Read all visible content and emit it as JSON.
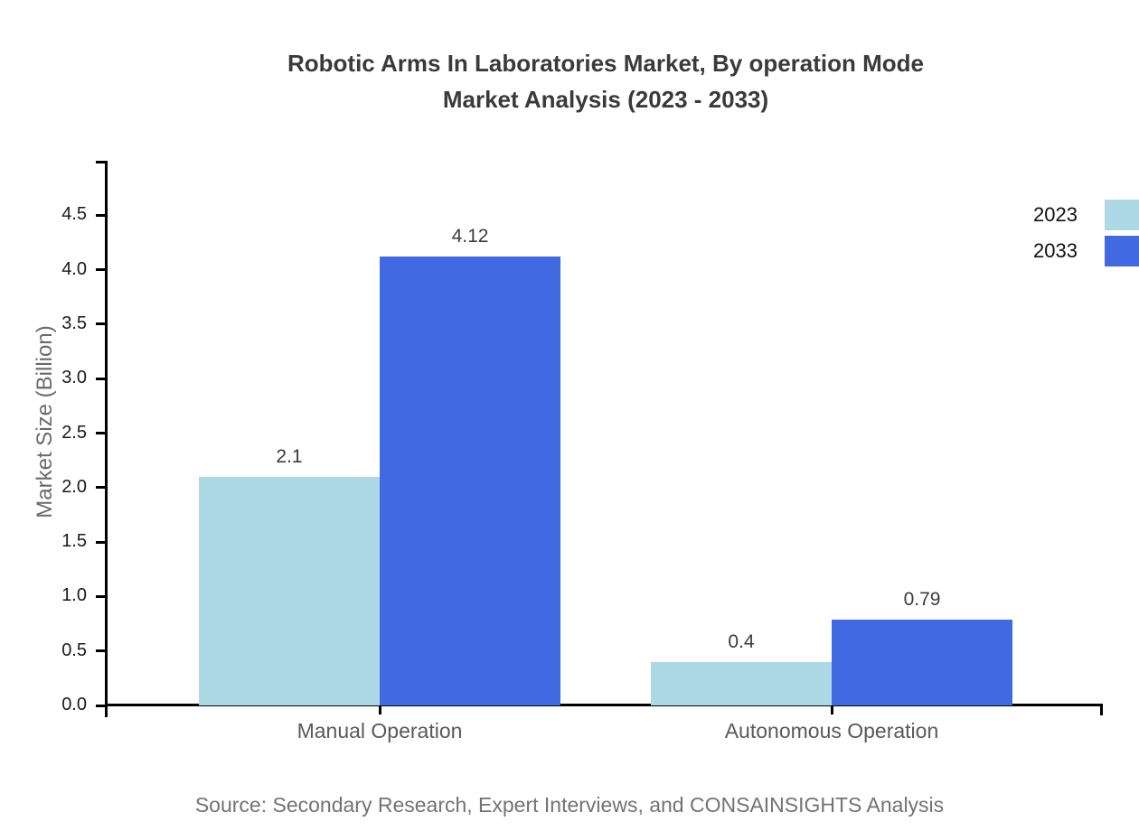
{
  "title": {
    "line1": "Robotic Arms In Laboratories Market, By operation Mode",
    "line2": "Market Analysis (2023 - 2033)"
  },
  "source_note": "Source: Secondary Research, Expert Interviews, and CONSAINSIGHTS Analysis",
  "chart_data": {
    "type": "bar",
    "title": "Robotic Arms In Laboratories Market, By operation Mode Market Analysis (2023 - 2033)",
    "categories": [
      "Manual Operation",
      "Autonomous Operation"
    ],
    "series": [
      {
        "name": "2023",
        "color": "#ADD8E6",
        "values": [
          2.1,
          0.4
        ],
        "value_labels": [
          "2.1",
          "0.4"
        ]
      },
      {
        "name": "2033",
        "color": "#4169E1",
        "values": [
          4.12,
          0.79
        ],
        "value_labels": [
          "4.12",
          "0.79"
        ]
      }
    ],
    "xlabel": "",
    "ylabel": "Market Size (Billion)",
    "ylim": [
      0,
      5
    ],
    "yticks": [
      "0.0",
      "0.5",
      "1.0",
      "1.5",
      "2.0",
      "2.5",
      "3.0",
      "3.5",
      "4.0",
      "4.5"
    ],
    "grid": false,
    "legend_position": "top-right",
    "bar_orientation": "vertical"
  },
  "legend": {
    "items": [
      {
        "label": "2023",
        "color": "#ADD8E6"
      },
      {
        "label": "2033",
        "color": "#4169E1"
      }
    ]
  }
}
